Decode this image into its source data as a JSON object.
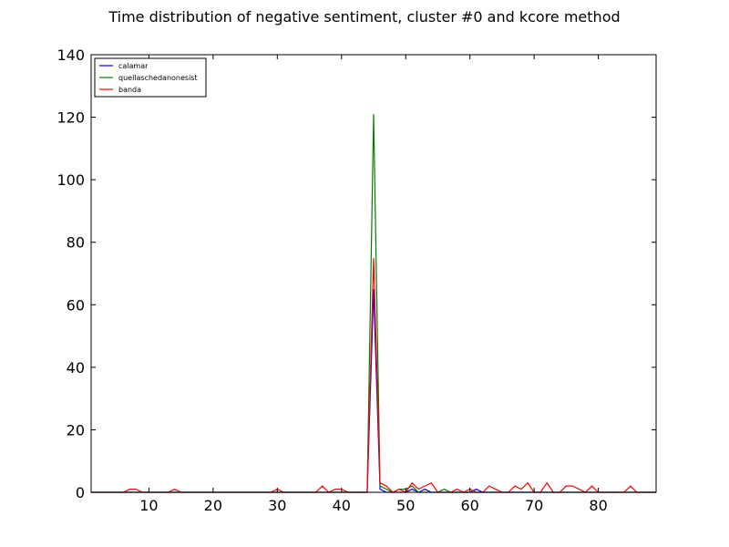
{
  "chart_data": {
    "type": "line",
    "title": "Time distribution of negative sentiment, cluster #0 and kcore method",
    "xlim": [
      1,
      89
    ],
    "ylim": [
      0,
      140
    ],
    "x_ticks": [
      10,
      20,
      30,
      40,
      50,
      60,
      70,
      80
    ],
    "y_ticks": [
      0,
      20,
      40,
      60,
      80,
      100,
      120,
      140
    ],
    "grid": false,
    "legend_position": "top-left",
    "series": [
      {
        "name": "calamar",
        "color": "#0000ff",
        "points": [
          [
            1,
            0
          ],
          [
            44,
            0
          ],
          [
            45,
            65
          ],
          [
            46,
            1
          ],
          [
            47,
            0
          ],
          [
            50,
            0
          ],
          [
            51,
            1
          ],
          [
            52,
            0
          ],
          [
            53,
            1
          ],
          [
            54,
            0
          ],
          [
            60,
            0
          ],
          [
            61,
            1
          ],
          [
            62,
            0
          ],
          [
            89,
            0
          ]
        ]
      },
      {
        "name": "quellaschedanonesist",
        "color": "#008000",
        "points": [
          [
            1,
            0
          ],
          [
            44,
            0
          ],
          [
            45,
            121
          ],
          [
            46,
            2
          ],
          [
            47,
            1
          ],
          [
            48,
            0
          ],
          [
            49,
            1
          ],
          [
            50,
            1
          ],
          [
            51,
            2
          ],
          [
            52,
            0
          ],
          [
            55,
            0
          ],
          [
            56,
            1
          ],
          [
            57,
            0
          ],
          [
            89,
            0
          ]
        ]
      },
      {
        "name": "banda",
        "color": "#ff0000",
        "points": [
          [
            1,
            0
          ],
          [
            6,
            0
          ],
          [
            7,
            1
          ],
          [
            8,
            1
          ],
          [
            9,
            0
          ],
          [
            13,
            0
          ],
          [
            14,
            1
          ],
          [
            15,
            0
          ],
          [
            29,
            0
          ],
          [
            30,
            1
          ],
          [
            31,
            0
          ],
          [
            36,
            0
          ],
          [
            37,
            2
          ],
          [
            38,
            0
          ],
          [
            39,
            1
          ],
          [
            40,
            1
          ],
          [
            41,
            0
          ],
          [
            44,
            0
          ],
          [
            45,
            75
          ],
          [
            46,
            3
          ],
          [
            47,
            2
          ],
          [
            48,
            0
          ],
          [
            49,
            1
          ],
          [
            50,
            0
          ],
          [
            51,
            3
          ],
          [
            52,
            1
          ],
          [
            53,
            2
          ],
          [
            54,
            3
          ],
          [
            55,
            0
          ],
          [
            57,
            0
          ],
          [
            58,
            1
          ],
          [
            59,
            0
          ],
          [
            60,
            1
          ],
          [
            61,
            0
          ],
          [
            62,
            0
          ],
          [
            63,
            2
          ],
          [
            64,
            1
          ],
          [
            65,
            0
          ],
          [
            66,
            0
          ],
          [
            67,
            2
          ],
          [
            68,
            1
          ],
          [
            69,
            3
          ],
          [
            70,
            0
          ],
          [
            71,
            0
          ],
          [
            72,
            3
          ],
          [
            73,
            0
          ],
          [
            74,
            0
          ],
          [
            75,
            2
          ],
          [
            76,
            2
          ],
          [
            77,
            1
          ],
          [
            78,
            0
          ],
          [
            79,
            2
          ],
          [
            80,
            0
          ],
          [
            84,
            0
          ],
          [
            85,
            2
          ],
          [
            86,
            0
          ],
          [
            89,
            0
          ]
        ]
      }
    ]
  }
}
